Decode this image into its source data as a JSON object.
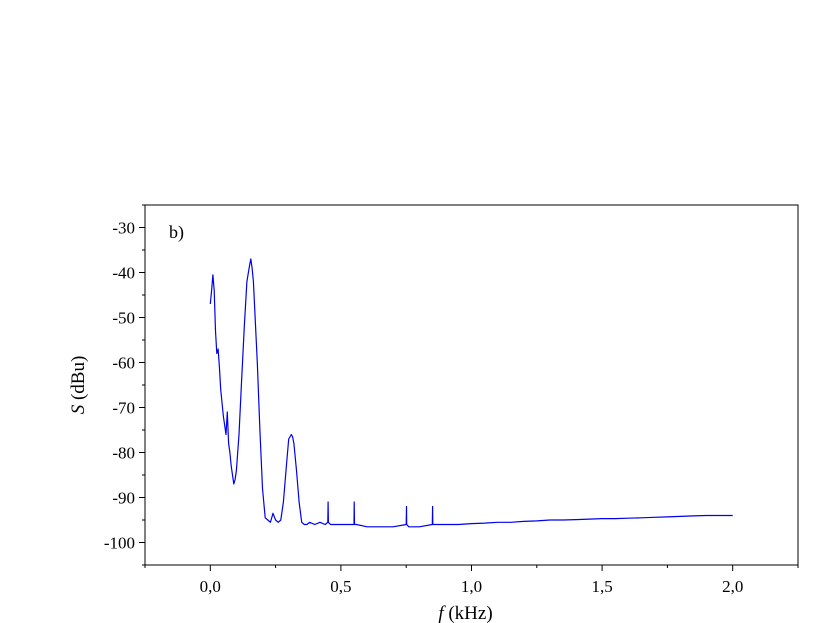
{
  "chart_data": {
    "type": "line",
    "panel_label": "b)",
    "xlabel": {
      "symbol": "f",
      "unit": "(kHz)"
    },
    "ylabel": {
      "symbol": "S",
      "unit": "(dBu)"
    },
    "xlim": [
      -0.25,
      2.25
    ],
    "ylim": [
      -105,
      -25
    ],
    "x_ticks": [
      {
        "value": 0.0,
        "label": "0,0"
      },
      {
        "value": 0.5,
        "label": "0,5"
      },
      {
        "value": 1.0,
        "label": "1,0"
      },
      {
        "value": 1.5,
        "label": "1,5"
      },
      {
        "value": 2.0,
        "label": "2,0"
      }
    ],
    "y_ticks": [
      {
        "value": -30,
        "label": "-30"
      },
      {
        "value": -40,
        "label": "-40"
      },
      {
        "value": -50,
        "label": "-50"
      },
      {
        "value": -60,
        "label": "-60"
      },
      {
        "value": -70,
        "label": "-70"
      },
      {
        "value": -80,
        "label": "-80"
      },
      {
        "value": -90,
        "label": "-90"
      },
      {
        "value": -100,
        "label": "-100"
      }
    ],
    "grid": false,
    "series": [
      {
        "color": "#0000ee",
        "x": [
          0.0,
          0.005,
          0.01,
          0.015,
          0.02,
          0.025,
          0.03,
          0.035,
          0.04,
          0.05,
          0.06,
          0.065,
          0.07,
          0.075,
          0.08,
          0.09,
          0.095,
          0.1,
          0.11,
          0.12,
          0.13,
          0.14,
          0.15,
          0.155,
          0.16,
          0.165,
          0.17,
          0.18,
          0.19,
          0.2,
          0.21,
          0.22,
          0.23,
          0.24,
          0.25,
          0.26,
          0.27,
          0.28,
          0.29,
          0.3,
          0.31,
          0.315,
          0.32,
          0.33,
          0.34,
          0.35,
          0.36,
          0.37,
          0.38,
          0.4,
          0.42,
          0.44,
          0.45,
          0.451,
          0.452,
          0.46,
          0.5,
          0.54,
          0.55,
          0.551,
          0.552,
          0.56,
          0.6,
          0.65,
          0.7,
          0.75,
          0.751,
          0.752,
          0.76,
          0.8,
          0.85,
          0.851,
          0.852,
          0.86,
          0.9,
          0.95,
          1.0,
          1.05,
          1.1,
          1.15,
          1.2,
          1.25,
          1.3,
          1.35,
          1.4,
          1.45,
          1.5,
          1.55,
          1.6,
          1.65,
          1.7,
          1.75,
          1.8,
          1.85,
          1.9,
          1.95,
          2.0
        ],
        "y": [
          -47,
          -44,
          -40.5,
          -44,
          -53,
          -58,
          -57,
          -61,
          -66,
          -72,
          -76,
          -71,
          -78,
          -80,
          -83,
          -87,
          -86,
          -84,
          -76,
          -64,
          -52,
          -42,
          -38.5,
          -37,
          -39,
          -42,
          -48,
          -60,
          -75,
          -88,
          -94.5,
          -95,
          -95.5,
          -93.5,
          -95,
          -95.5,
          -95,
          -91,
          -84,
          -77,
          -76,
          -76.5,
          -78,
          -84,
          -91,
          -95.5,
          -96,
          -96,
          -95.5,
          -96,
          -95.5,
          -96,
          -95.5,
          -91,
          -95.5,
          -96,
          -96,
          -96,
          -96,
          -91,
          -96,
          -96,
          -96.5,
          -96.5,
          -96.5,
          -96,
          -92,
          -96,
          -96.5,
          -96.5,
          -96,
          -92,
          -96,
          -96,
          -96,
          -96,
          -95.8,
          -95.7,
          -95.5,
          -95.5,
          -95.3,
          -95.2,
          -95,
          -95,
          -94.9,
          -94.8,
          -94.7,
          -94.7,
          -94.6,
          -94.5,
          -94.4,
          -94.3,
          -94.2,
          -94.1,
          -94.0,
          -94.0,
          -94.0
        ]
      }
    ]
  }
}
